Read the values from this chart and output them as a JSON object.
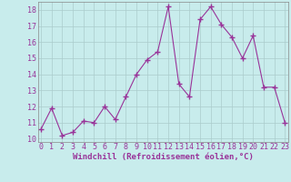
{
  "x": [
    0,
    1,
    2,
    3,
    4,
    5,
    6,
    7,
    8,
    9,
    10,
    11,
    12,
    13,
    14,
    15,
    16,
    17,
    18,
    19,
    20,
    21,
    22,
    23
  ],
  "y": [
    10.6,
    11.9,
    10.2,
    10.4,
    11.1,
    11.0,
    12.0,
    11.2,
    12.6,
    14.0,
    14.9,
    15.4,
    18.2,
    13.4,
    12.6,
    17.4,
    18.2,
    17.1,
    16.3,
    15.0,
    16.4,
    13.2,
    13.2,
    11.0
  ],
  "line_color": "#993399",
  "marker": "+",
  "background_color": "#c8ecec",
  "grid_color": "#aacccc",
  "xlabel": "Windchill (Refroidissement éolien,°C)",
  "xlabel_fontsize": 6.5,
  "tick_fontsize": 6.0,
  "ylim": [
    9.8,
    18.5
  ],
  "yticks": [
    10,
    11,
    12,
    13,
    14,
    15,
    16,
    17,
    18
  ],
  "xticks": [
    0,
    1,
    2,
    3,
    4,
    5,
    6,
    7,
    8,
    9,
    10,
    11,
    12,
    13,
    14,
    15,
    16,
    17,
    18,
    19,
    20,
    21,
    22,
    23
  ],
  "xlim": [
    -0.3,
    23.3
  ]
}
